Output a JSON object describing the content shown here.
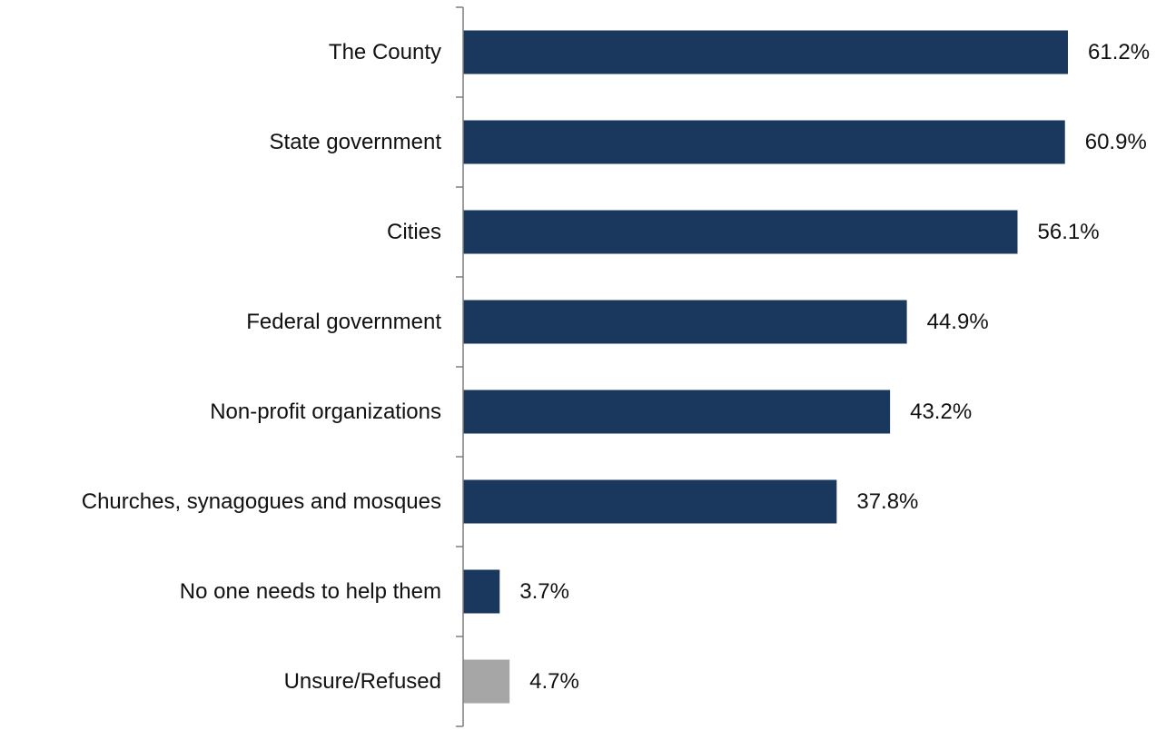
{
  "chart_data": {
    "type": "bar",
    "orientation": "horizontal",
    "title": "",
    "xlabel": "",
    "ylabel": "",
    "xlim": [
      0,
      100
    ],
    "grid": false,
    "categories": [
      "The County",
      "State government",
      "Cities",
      "Federal government",
      "Non-profit organizations",
      "Churches, synagogues and mosques",
      "No one needs to help them",
      "Unsure/Refused"
    ],
    "values": [
      61.2,
      60.9,
      56.1,
      44.9,
      43.2,
      37.8,
      3.7,
      4.7
    ],
    "value_labels": [
      "61.2%",
      "60.9%",
      "56.1%",
      "44.9%",
      "43.2%",
      "37.8%",
      "3.7%",
      "4.7%"
    ],
    "colors": [
      "#1a375e",
      "#1a375e",
      "#1a375e",
      "#1a375e",
      "#1a375e",
      "#1a375e",
      "#1a375e",
      "#a6a6a6"
    ]
  }
}
